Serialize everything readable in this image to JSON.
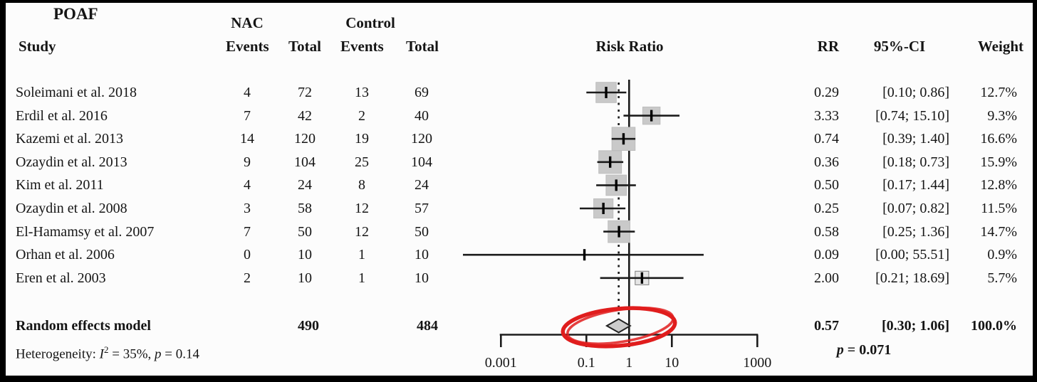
{
  "figure": {
    "title": "POAF",
    "headers": {
      "study": "Study",
      "nac_group": "NAC",
      "control_group": "Control",
      "events": "Events",
      "total": "Total",
      "events2": "Events",
      "total2": "Total",
      "risk_ratio": "Risk Ratio",
      "rr": "RR",
      "ci": "95%-CI",
      "weight": "Weight"
    }
  },
  "chart_data": {
    "type": "forest",
    "effect_measure": "Risk Ratio",
    "x_scale": "log",
    "x_ticks": [
      0.001,
      0.1,
      1,
      10,
      1000
    ],
    "x_tick_labels": [
      "0.001",
      "0.1",
      "1",
      "10",
      "1000"
    ],
    "null_line": 1,
    "pooled_effect_line": 0.57,
    "studies": [
      {
        "name": "Soleimani et al. 2018",
        "nac_events": "4",
        "nac_total": "72",
        "control_events": "13",
        "control_total": "69",
        "rr": 0.29,
        "ci_low": 0.1,
        "ci_high": 0.86,
        "rr_label": "0.29",
        "ci_label": "[0.10; 0.86]",
        "weight_pct": 12.7,
        "weight_label": "12.7%"
      },
      {
        "name": "Erdil et al. 2016",
        "nac_events": "7",
        "nac_total": "42",
        "control_events": "2",
        "control_total": "40",
        "rr": 3.33,
        "ci_low": 0.74,
        "ci_high": 15.1,
        "rr_label": "3.33",
        "ci_label": "[0.74; 15.10]",
        "weight_pct": 9.3,
        "weight_label": "9.3%"
      },
      {
        "name": "Kazemi et al. 2013",
        "nac_events": "14",
        "nac_total": "120",
        "control_events": "19",
        "control_total": "120",
        "rr": 0.74,
        "ci_low": 0.39,
        "ci_high": 1.4,
        "rr_label": "0.74",
        "ci_label": "[0.39; 1.40]",
        "weight_pct": 16.6,
        "weight_label": "16.6%"
      },
      {
        "name": "Ozaydin et al. 2013",
        "nac_events": "9",
        "nac_total": "104",
        "control_events": "25",
        "control_total": "104",
        "rr": 0.36,
        "ci_low": 0.18,
        "ci_high": 0.73,
        "rr_label": "0.36",
        "ci_label": "[0.18; 0.73]",
        "weight_pct": 15.9,
        "weight_label": "15.9%"
      },
      {
        "name": "Kim et al. 2011",
        "nac_events": "4",
        "nac_total": "24",
        "control_events": "8",
        "control_total": "24",
        "rr": 0.5,
        "ci_low": 0.17,
        "ci_high": 1.44,
        "rr_label": "0.50",
        "ci_label": "[0.17; 1.44]",
        "weight_pct": 12.8,
        "weight_label": "12.8%"
      },
      {
        "name": "Ozaydin et al. 2008",
        "nac_events": "3",
        "nac_total": "58",
        "control_events": "12",
        "control_total": "57",
        "rr": 0.25,
        "ci_low": 0.07,
        "ci_high": 0.82,
        "rr_label": "0.25",
        "ci_label": "[0.07; 0.82]",
        "weight_pct": 11.5,
        "weight_label": "11.5%"
      },
      {
        "name": "El-Hamamsy et al. 2007",
        "nac_events": "7",
        "nac_total": "50",
        "control_events": "12",
        "control_total": "50",
        "rr": 0.58,
        "ci_low": 0.25,
        "ci_high": 1.36,
        "rr_label": "0.58",
        "ci_label": "[0.25; 1.36]",
        "weight_pct": 14.7,
        "weight_label": "14.7%"
      },
      {
        "name": "Orhan et al. 2006",
        "nac_events": "0",
        "nac_total": "10",
        "control_events": "1",
        "control_total": "10",
        "rr": 0.09,
        "ci_low": 0.0,
        "ci_high": 55.51,
        "rr_label": "0.09",
        "ci_label": "[0.00; 55.51]",
        "weight_pct": 0.9,
        "weight_label": "0.9%"
      },
      {
        "name": "Eren et al. 2003",
        "nac_events": "2",
        "nac_total": "10",
        "control_events": "1",
        "control_total": "10",
        "rr": 2.0,
        "ci_low": 0.21,
        "ci_high": 18.69,
        "rr_label": "2.00",
        "ci_label": "[0.21; 18.69]",
        "weight_pct": 5.7,
        "weight_label": "5.7%"
      }
    ],
    "summary": {
      "label": "Random effects model",
      "nac_total": "490",
      "control_total": "484",
      "rr": 0.57,
      "ci_low": 0.3,
      "ci_high": 1.06,
      "rr_label": "0.57",
      "ci_label": "[0.30; 1.06]",
      "weight_label": "100.0%"
    },
    "heterogeneity": {
      "prefix": "Heterogeneity: ",
      "i_sym": "I",
      "i_sup": "2",
      "mid": " = 35%, ",
      "p_sym": "p",
      "tail": " = 0.14"
    },
    "summary_p": {
      "p_sym": "p",
      "tail": " = 0.071"
    }
  },
  "annotation": {
    "shape": "hand-drawn ellipse",
    "target": "summary diamond",
    "color": "#e01d1d"
  },
  "colors": {
    "square_fill": "#c9c9c9",
    "diamond_fill": "#cccccc",
    "line": "#1c1c1c",
    "annotation_red": "#e01d1d"
  }
}
